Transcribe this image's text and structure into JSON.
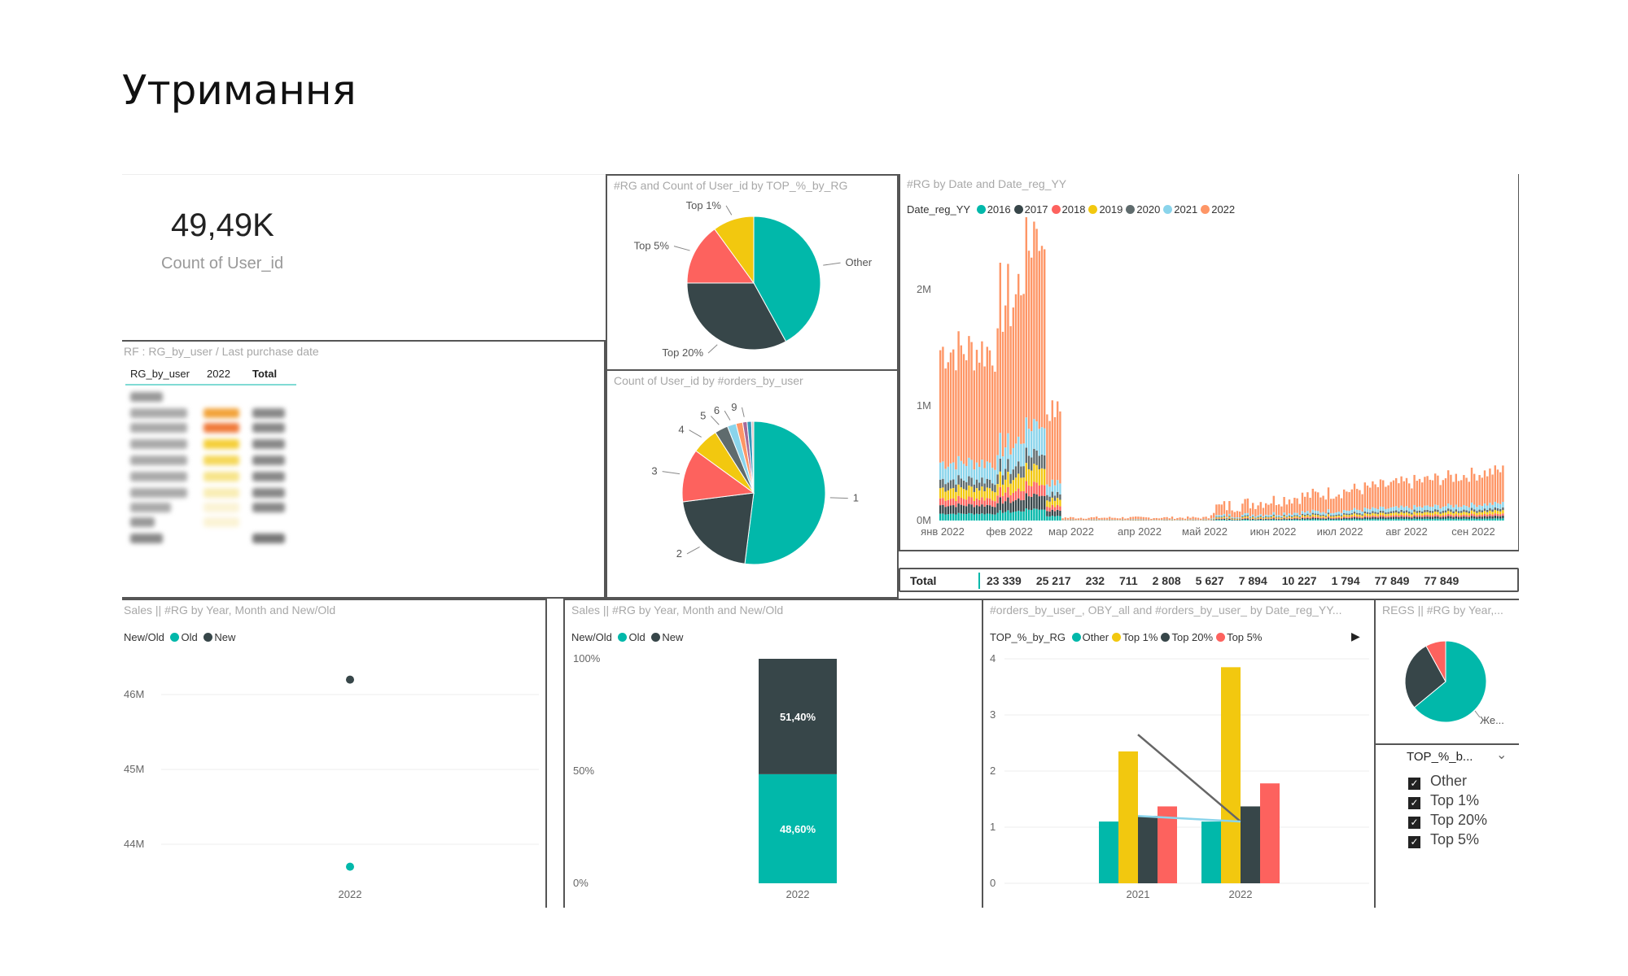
{
  "page_title": "Утримання",
  "kpi": {
    "value": "49,49K",
    "label": "Count of User_id"
  },
  "pie_top": {
    "title": "#RG and Count of User_id by TOP_%_by_RG",
    "slices": [
      {
        "label": "Other",
        "value": 42,
        "color": "#01B8AA"
      },
      {
        "label": "Top 20%",
        "value": 33,
        "color": "#374649"
      },
      {
        "label": "Top 5%",
        "value": 15,
        "color": "#FD625E"
      },
      {
        "label": "Top 1%",
        "value": 10,
        "color": "#F2C80F"
      }
    ]
  },
  "pie_orders": {
    "title": "Count of User_id by #orders_by_user",
    "slices": [
      {
        "label": "1",
        "value": 52,
        "color": "#01B8AA"
      },
      {
        "label": "2",
        "value": 21,
        "color": "#374649"
      },
      {
        "label": "3",
        "value": 12,
        "color": "#FD625E"
      },
      {
        "label": "4",
        "value": 6,
        "color": "#F2C80F"
      },
      {
        "label": "5",
        "value": 3,
        "color": "#5F6B6D"
      },
      {
        "label": "6",
        "value": 2,
        "color": "#8AD4EB"
      },
      {
        "label": "",
        "value": 1.5,
        "color": "#FE9666"
      },
      {
        "label": "9",
        "value": 1,
        "color": "#A66999"
      },
      {
        "label": "",
        "value": 1,
        "color": "#3599B8"
      },
      {
        "label": "",
        "value": 0.5,
        "color": "#DFBFBF"
      }
    ]
  },
  "rf_table": {
    "title": "RF : RG_by_user / Last purchase date",
    "headers": [
      "RG_by_user",
      "2022",
      "Total"
    ]
  },
  "area_chart": {
    "title": "#RG by Date and Date_reg_YY",
    "legend_title": "Date_reg_YY",
    "legend": [
      {
        "name": "2016",
        "color": "#01B8AA"
      },
      {
        "name": "2017",
        "color": "#374649"
      },
      {
        "name": "2018",
        "color": "#FD625E"
      },
      {
        "name": "2019",
        "color": "#F2C80F"
      },
      {
        "name": "2020",
        "color": "#5F6B6D"
      },
      {
        "name": "2021",
        "color": "#8AD4EB"
      },
      {
        "name": "2022",
        "color": "#FE9666"
      }
    ],
    "y_ticks": [
      "2M",
      "1M",
      "0M"
    ],
    "x_ticks": [
      "янв 2022",
      "фев 2022",
      "мар 2022",
      "апр 2022",
      "май 2022",
      "июн 2022",
      "июл 2022",
      "авг 2022",
      "сен 2022"
    ]
  },
  "totals": {
    "label": "Total",
    "values": [
      "23 339",
      "25 217",
      "232",
      "711",
      "2 808",
      "5 627",
      "7 894",
      "10 227",
      "1 794",
      "77 849",
      "77 849"
    ]
  },
  "scatter": {
    "title": "Sales || #RG by Year, Month and New/Old",
    "legend_title": "New/Old",
    "legend": [
      {
        "name": "Old",
        "color": "#01B8AA"
      },
      {
        "name": "New",
        "color": "#374649"
      }
    ],
    "y_ticks": [
      "46M",
      "45M",
      "44M"
    ],
    "x_tick": "2022"
  },
  "stacked": {
    "title": "Sales || #RG by Year, Month and New/Old",
    "legend_title": "New/Old",
    "legend": [
      {
        "name": "Old",
        "color": "#01B8AA"
      },
      {
        "name": "New",
        "color": "#374649"
      }
    ],
    "y_ticks": [
      "100%",
      "50%",
      "0%"
    ],
    "x_tick": "2022",
    "new_label": "51,40%",
    "old_label": "48,60%"
  },
  "combo": {
    "title": "#orders_by_user_, OBY_all and #orders_by_user_ by Date_reg_YY...",
    "legend_title": "TOP_%_by_RG",
    "legend": [
      {
        "name": "Other",
        "color": "#01B8AA"
      },
      {
        "name": "Top 1%",
        "color": "#F2C80F"
      },
      {
        "name": "Top 20%",
        "color": "#374649"
      },
      {
        "name": "Top 5%",
        "color": "#FD625E"
      }
    ],
    "y_ticks": [
      "4",
      "3",
      "2",
      "1",
      "0"
    ],
    "x_ticks": [
      "2021",
      "2022"
    ]
  },
  "regs_pie": {
    "title": "REGS || #RG by Year,...",
    "slice_label": "Же...",
    "slices": [
      {
        "value": 64,
        "color": "#01B8AA"
      },
      {
        "value": 28,
        "color": "#374649"
      },
      {
        "value": 8,
        "color": "#FD625E"
      }
    ]
  },
  "slicer": {
    "title": "TOP_%_b...",
    "items": [
      "Other",
      "Top 1%",
      "Top 20%",
      "Top 5%"
    ]
  },
  "chart_data": [
    {
      "type": "pie",
      "title": "#RG and Count of User_id by TOP_%_by_RG",
      "categories": [
        "Other",
        "Top 20%",
        "Top 5%",
        "Top 1%"
      ],
      "values": [
        42,
        33,
        15,
        10
      ]
    },
    {
      "type": "pie",
      "title": "Count of User_id by #orders_by_user",
      "categories": [
        "1",
        "2",
        "3",
        "4",
        "5",
        "6",
        "9"
      ],
      "values": [
        52,
        21,
        12,
        6,
        3,
        2,
        1
      ]
    },
    {
      "type": "bar",
      "title": "Sales || #RG by Year, Month and New/Old",
      "categories": [
        "2022"
      ],
      "series": [
        {
          "name": "Old",
          "values": [
            48.6
          ]
        },
        {
          "name": "New",
          "values": [
            51.4
          ]
        }
      ],
      "ylim": [
        0,
        100
      ]
    },
    {
      "type": "scatter",
      "title": "Sales || #RG by Year, Month and New/Old",
      "categories": [
        "2022"
      ],
      "series": [
        {
          "name": "Old",
          "values": [
            43.7
          ]
        },
        {
          "name": "New",
          "values": [
            46.2
          ]
        }
      ],
      "ylim": [
        43.5,
        46.5
      ]
    },
    {
      "type": "bar",
      "title": "#orders_by_user_, OBY_all and #orders_by_user_ by Date_reg_YY...",
      "categories": [
        "2021",
        "2022"
      ],
      "series": [
        {
          "name": "Other",
          "values": [
            1.1,
            1.1
          ]
        },
        {
          "name": "Top 1%",
          "values": [
            2.35,
            3.85
          ]
        },
        {
          "name": "Top 20%",
          "values": [
            1.2,
            1.37
          ]
        },
        {
          "name": "Top 5%",
          "values": [
            1.37,
            1.78
          ]
        }
      ],
      "lines": [
        {
          "values": [
            2.65,
            1.1
          ],
          "color": "#666666"
        },
        {
          "values": [
            1.2,
            1.1
          ],
          "color": "#8AD4EB"
        }
      ],
      "ylim": [
        0,
        4
      ]
    }
  ]
}
